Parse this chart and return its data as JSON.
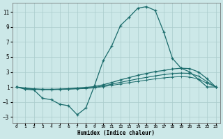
{
  "xlabel": "Humidex (Indice chaleur)",
  "bg_color": "#cce8e8",
  "grid_color": "#aacccc",
  "line_color": "#1a6b6b",
  "xlim": [
    -0.5,
    23.5
  ],
  "ylim": [
    -3.8,
    12.2
  ],
  "yticks": [
    -3,
    -1,
    1,
    3,
    5,
    7,
    9,
    11
  ],
  "xticks": [
    0,
    1,
    2,
    3,
    4,
    5,
    6,
    7,
    8,
    9,
    10,
    11,
    12,
    13,
    14,
    15,
    16,
    17,
    18,
    19,
    20,
    21,
    22,
    23
  ],
  "line1_x": [
    0,
    1,
    2,
    3,
    4,
    5,
    6,
    7,
    8,
    9,
    10,
    11,
    12,
    13,
    14,
    15,
    16,
    17,
    18,
    19,
    20,
    21,
    22,
    23
  ],
  "line1_y": [
    1,
    0.7,
    0.6,
    -0.5,
    -0.7,
    -1.3,
    -1.5,
    -2.7,
    -1.8,
    1.2,
    4.5,
    6.5,
    9.2,
    10.3,
    11.5,
    11.7,
    11.2,
    8.3,
    4.8,
    3.5,
    3.0,
    2.0,
    1.0,
    1.0
  ],
  "line2_x": [
    0,
    1,
    2,
    3,
    4,
    5,
    6,
    7,
    8,
    9,
    10,
    11,
    12,
    13,
    14,
    15,
    16,
    17,
    18,
    19,
    20,
    21,
    22,
    23
  ],
  "line2_y": [
    1,
    0.85,
    0.75,
    0.7,
    0.7,
    0.72,
    0.78,
    0.85,
    0.95,
    1.05,
    1.3,
    1.6,
    1.95,
    2.25,
    2.55,
    2.8,
    3.05,
    3.2,
    3.4,
    3.5,
    3.45,
    3.0,
    2.1,
    1.0
  ],
  "line3_x": [
    0,
    1,
    2,
    3,
    4,
    5,
    6,
    7,
    8,
    9,
    10,
    11,
    12,
    13,
    14,
    15,
    16,
    17,
    18,
    19,
    20,
    21,
    22,
    23
  ],
  "line3_y": [
    1,
    0.8,
    0.72,
    0.67,
    0.67,
    0.7,
    0.74,
    0.8,
    0.87,
    0.95,
    1.15,
    1.38,
    1.62,
    1.85,
    2.08,
    2.28,
    2.48,
    2.65,
    2.78,
    2.85,
    2.8,
    2.45,
    1.7,
    1.0
  ],
  "line4_x": [
    0,
    1,
    2,
    3,
    4,
    5,
    6,
    7,
    8,
    9,
    10,
    11,
    12,
    13,
    14,
    15,
    16,
    17,
    18,
    19,
    20,
    21,
    22,
    23
  ],
  "line4_y": [
    1,
    0.78,
    0.68,
    0.64,
    0.64,
    0.66,
    0.7,
    0.75,
    0.8,
    0.88,
    1.05,
    1.22,
    1.4,
    1.58,
    1.75,
    1.92,
    2.08,
    2.22,
    2.32,
    2.38,
    2.32,
    2.05,
    1.5,
    1.0
  ]
}
